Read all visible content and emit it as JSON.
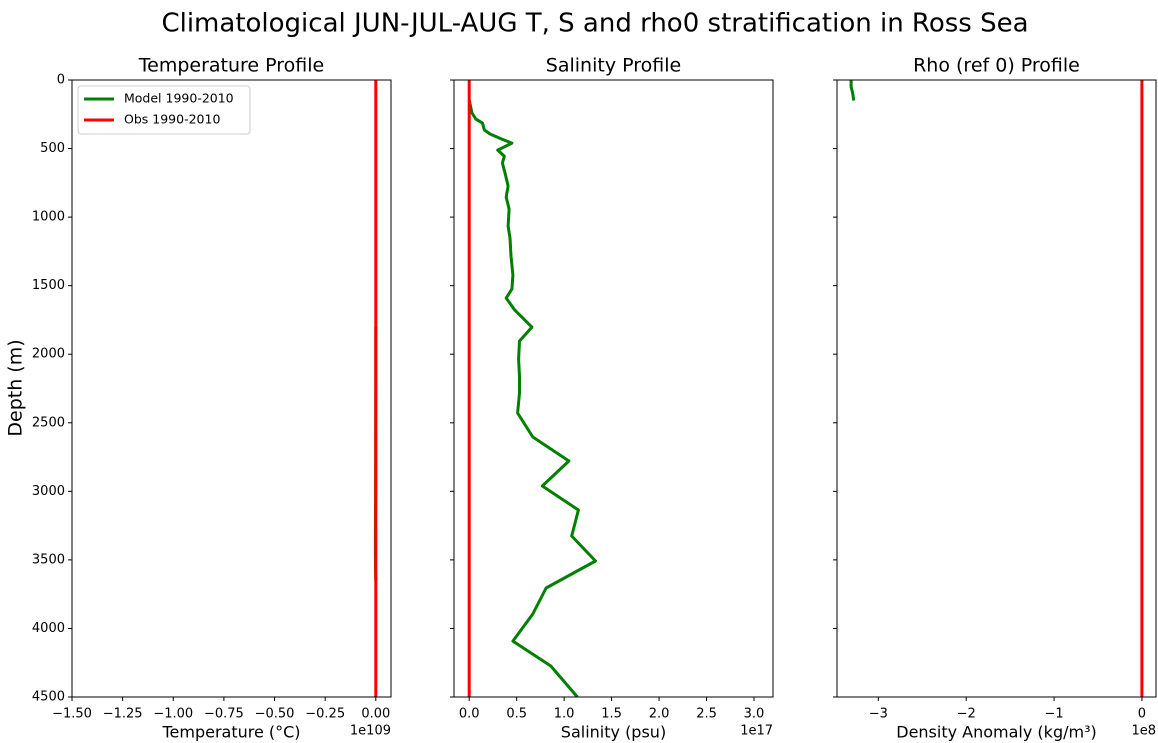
{
  "figure": {
    "title": "Climatological JUN-JUL-AUG T, S and rho0 stratification in Ross Sea",
    "ylabel": "Depth (m)",
    "colors": {
      "model": "#008000",
      "obs": "#ff0000",
      "axes": "#000000"
    }
  },
  "legend": {
    "entries": [
      {
        "label": "Model 1990-2010",
        "color": "#008000"
      },
      {
        "label": "Obs 1990-2010",
        "color": "#ff0000"
      }
    ]
  },
  "chart_data": [
    {
      "type": "line",
      "title": "Temperature Profile",
      "xlabel": "Temperature (°C)",
      "ylabel": "Depth (m)",
      "x_offset_label": "1e109",
      "xlim": [
        -1.5,
        0.075
      ],
      "ylim": [
        4500,
        0
      ],
      "xticks": [
        -1.5,
        -1.25,
        -1.0,
        -0.75,
        -0.5,
        -0.25,
        0.0
      ],
      "xtick_labels": [
        "−1.50",
        "−1.25",
        "−1.00",
        "−0.75",
        "−0.50",
        "−0.25",
        "0.00"
      ],
      "yticks": [
        0,
        500,
        1000,
        1500,
        2000,
        2500,
        3000,
        3500,
        4000,
        4500
      ],
      "ytick_labels": [
        "0",
        "500",
        "1000",
        "1500",
        "2000",
        "2500",
        "3000",
        "3500",
        "4000",
        "4500"
      ],
      "grid": false,
      "legend_position": "upper left",
      "series": [
        {
          "name": "Model 1990-2010",
          "color": "#008000",
          "x": [
            0.0,
            0.0,
            -0.001,
            -0.002,
            -0.001,
            0.0
          ],
          "y": [
            1800,
            2200,
            3000,
            3400,
            3600,
            3650
          ]
        },
        {
          "name": "Obs 1990-2010",
          "color": "#ff0000",
          "x": [
            0.0,
            0.0
          ],
          "y": [
            0,
            4500
          ]
        }
      ]
    },
    {
      "type": "line",
      "title": "Salinity Profile",
      "xlabel": "Salinity (psu)",
      "x_offset_label": "1e17",
      "xlim": [
        -0.16,
        3.2
      ],
      "ylim": [
        4500,
        0
      ],
      "xticks": [
        0.0,
        0.5,
        1.0,
        1.5,
        2.0,
        2.5,
        3.0
      ],
      "xtick_labels": [
        "0.0",
        "0.5",
        "1.0",
        "1.5",
        "2.0",
        "2.5",
        "3.0"
      ],
      "grid": false,
      "series": [
        {
          "name": "Model 1990-2010",
          "color": "#008000",
          "x": [
            0.0,
            0.03,
            0.07,
            0.14,
            0.16,
            0.22,
            0.34,
            0.45,
            0.3,
            0.37,
            0.35,
            0.38,
            0.41,
            0.39,
            0.42,
            0.41,
            0.43,
            0.44,
            0.46,
            0.45,
            0.39,
            0.48,
            0.66,
            0.53,
            0.52,
            0.53,
            0.53,
            0.51,
            0.67,
            1.05,
            0.77,
            1.15,
            1.08,
            1.33,
            0.81,
            0.67,
            0.46,
            0.86,
            1.14
          ],
          "y": [
            146,
            241,
            285,
            314,
            365,
            394,
            430,
            460,
            511,
            555,
            606,
            686,
            773,
            854,
            941,
            1065,
            1152,
            1284,
            1423,
            1525,
            1590,
            1678,
            1802,
            1904,
            2035,
            2167,
            2283,
            2429,
            2604,
            2779,
            2961,
            3136,
            3326,
            3508,
            3705,
            3895,
            4092,
            4274,
            4500
          ]
        },
        {
          "name": "Obs 1990-2010",
          "color": "#ff0000",
          "x": [
            0.0,
            0.0
          ],
          "y": [
            0,
            4500
          ]
        }
      ]
    },
    {
      "type": "line",
      "title": "Rho (ref 0) Profile",
      "xlabel": "Density Anomaly (kg/m³)",
      "x_offset_label": "1e8",
      "xlim": [
        -3.47,
        0.16
      ],
      "ylim": [
        4500,
        0
      ],
      "xticks": [
        -3,
        -2,
        -1,
        0
      ],
      "xtick_labels": [
        "−3",
        "−2",
        "−1",
        "0"
      ],
      "grid": false,
      "series": [
        {
          "name": "Model 1990-2010",
          "color": "#008000",
          "x": [
            -3.31,
            -3.31,
            -3.29,
            -3.28
          ],
          "y": [
            0,
            50,
            100,
            150
          ]
        },
        {
          "name": "Obs 1990-2010",
          "color": "#ff0000",
          "x": [
            0.0,
            0.0
          ],
          "y": [
            0,
            4500
          ]
        }
      ]
    }
  ]
}
